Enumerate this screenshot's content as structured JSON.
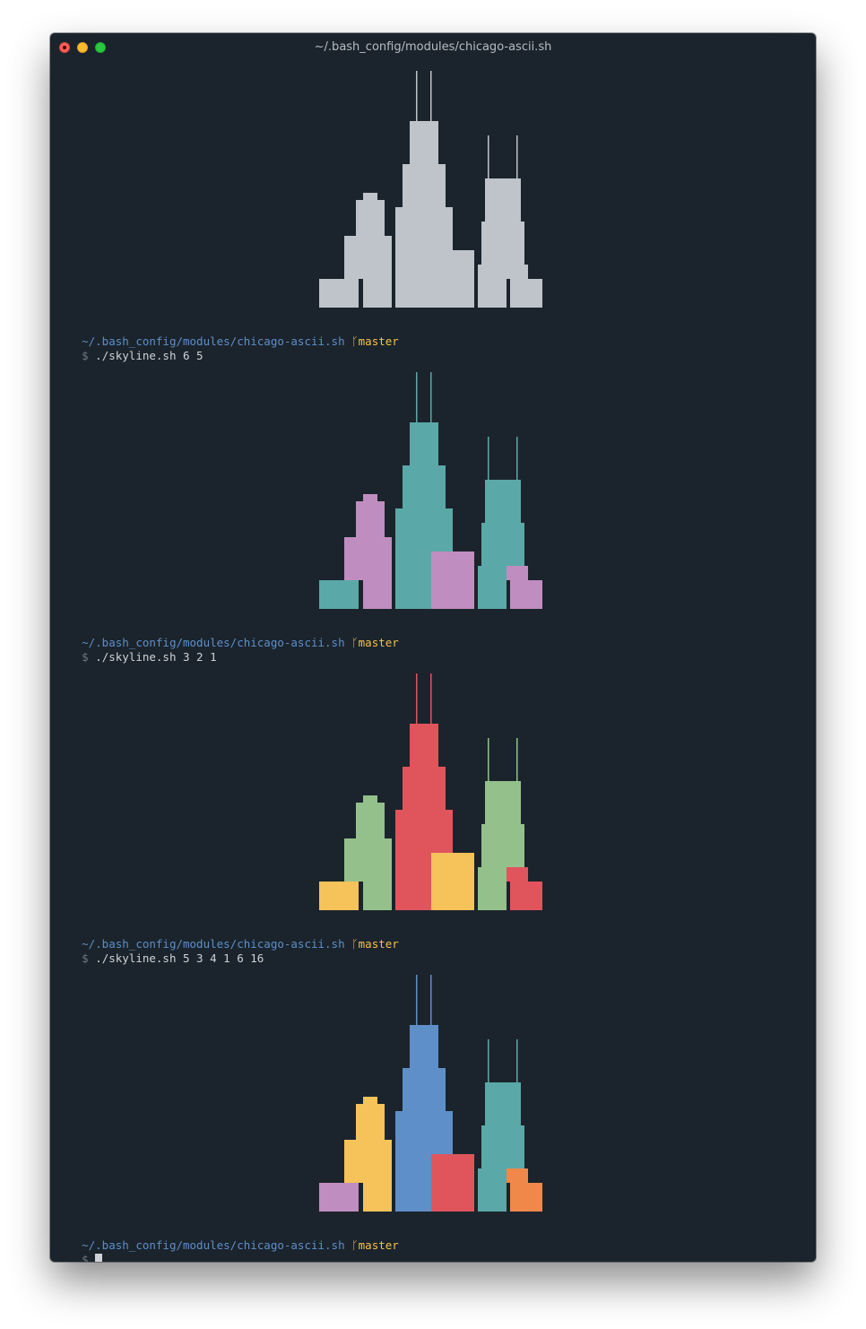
{
  "window": {
    "title": "~/.bash_config/modules/chicago-ascii.sh"
  },
  "prompt": {
    "path": "~/.bash_config/modules/chicago-ascii.sh",
    "branch_glyph": "ᚴ",
    "branch": "master",
    "dollar": "$"
  },
  "commands": [
    "./skyline.sh 6 5",
    "./skyline.sh 3 2 1",
    "./skyline.sh 5 3 4 1 6 16",
    ""
  ],
  "colors": {
    "background": "#1b242c",
    "gray": "#bfc3ca",
    "teal": "#5ba8a8",
    "purple": "#c08dc0",
    "red": "#e0555c",
    "green": "#94c18b",
    "yellow": "#f6c25a",
    "blue": "#5e8fc8",
    "orange": "#f0884a"
  },
  "skylines": [
    {
      "left_low": "gray",
      "left_tower": "gray",
      "sears": "gray",
      "mid_low": "gray",
      "hancock": "gray",
      "right_low": "gray"
    },
    {
      "left_low": "teal",
      "left_tower": "purple",
      "sears": "teal",
      "mid_low": "purple",
      "hancock": "teal",
      "right_low": "purple"
    },
    {
      "left_low": "yellow",
      "left_tower": "green",
      "sears": "red",
      "mid_low": "yellow",
      "hancock": "green",
      "right_low": "red"
    },
    {
      "left_low": "purple",
      "left_tower": "yellow",
      "sears": "blue",
      "mid_low": "red",
      "hancock": "teal",
      "right_low": "orange"
    }
  ]
}
